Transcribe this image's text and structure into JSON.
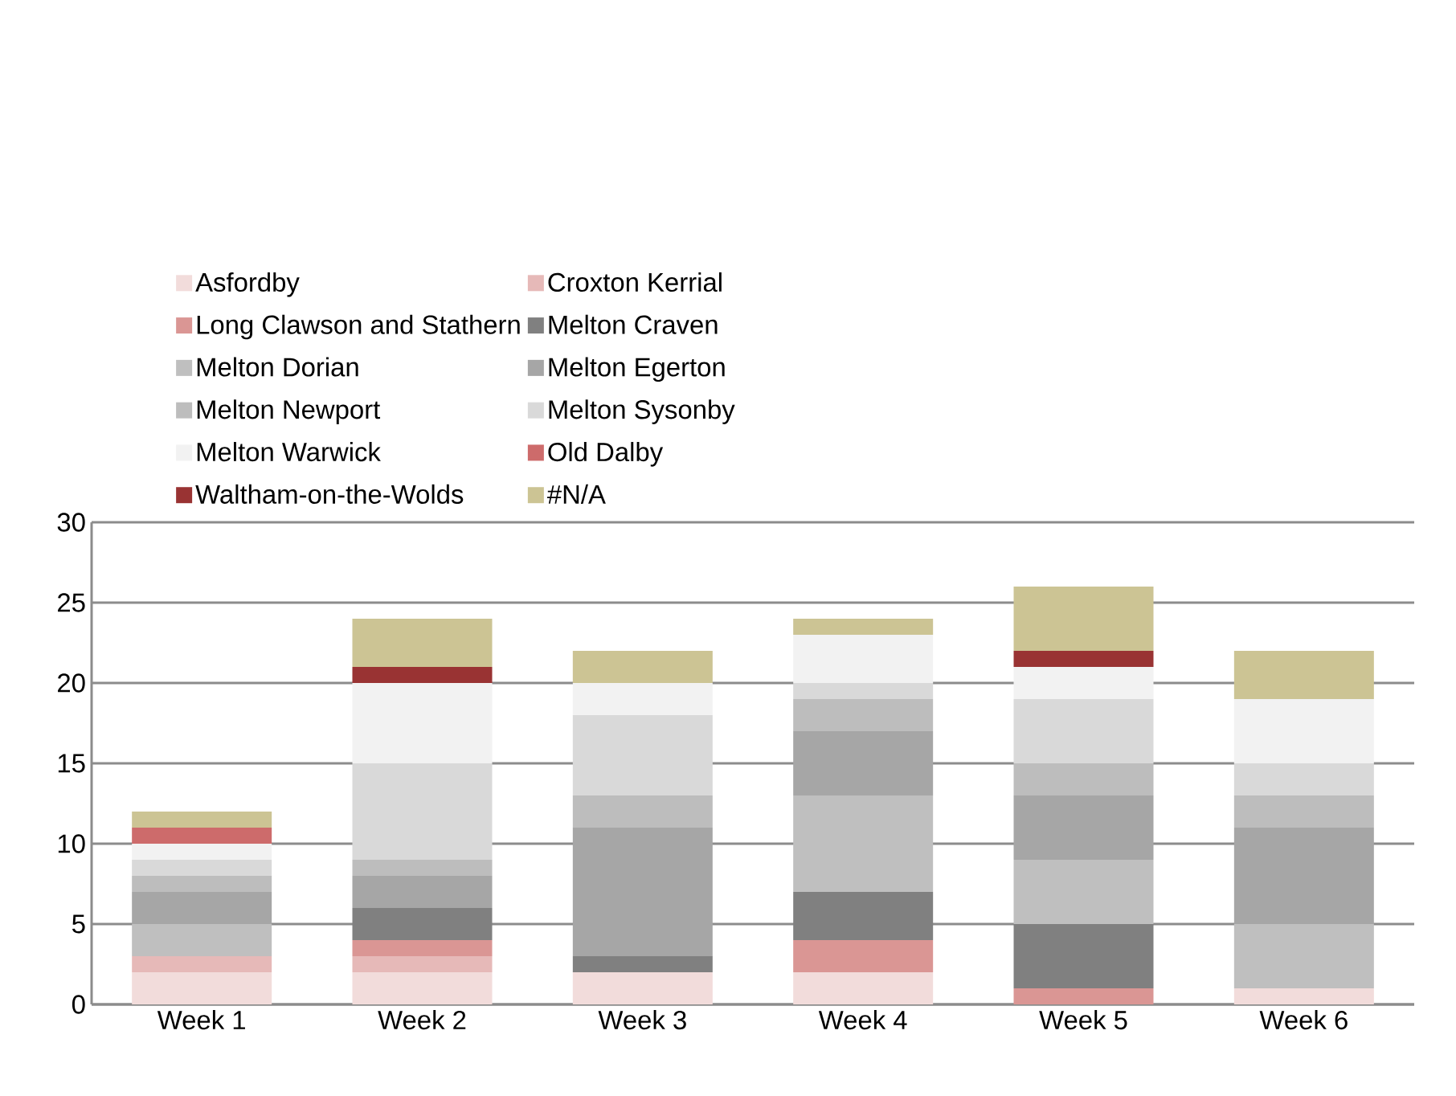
{
  "chart_data": {
    "type": "bar",
    "stacked": true,
    "categories": [
      "Week 1",
      "Week 2",
      "Week 3",
      "Week 4",
      "Week 5",
      "Week 6"
    ],
    "series": [
      {
        "name": "Asfordby",
        "color": "#f2dcdb",
        "values": [
          2,
          2,
          2,
          2,
          0,
          1
        ]
      },
      {
        "name": "Croxton Kerrial",
        "color": "#e6b9b8",
        "values": [
          1,
          1,
          0,
          0,
          0,
          0
        ]
      },
      {
        "name": "Long Clawson and Stathern",
        "color": "#da9694",
        "values": [
          0,
          1,
          0,
          2,
          1,
          0
        ]
      },
      {
        "name": "Melton Craven",
        "color": "#808080",
        "values": [
          0,
          2,
          1,
          3,
          4,
          0
        ]
      },
      {
        "name": "Melton Dorian",
        "color": "#bfbfbf",
        "values": [
          2,
          0,
          0,
          6,
          4,
          4
        ]
      },
      {
        "name": "Melton Egerton",
        "color": "#a6a6a6",
        "values": [
          2,
          2,
          8,
          4,
          4,
          6
        ]
      },
      {
        "name": "Melton Newport",
        "color": "#bdbdbd",
        "values": [
          1,
          1,
          2,
          2,
          2,
          2
        ]
      },
      {
        "name": "Melton Sysonby",
        "color": "#d9d9d9",
        "values": [
          1,
          6,
          5,
          1,
          4,
          2
        ]
      },
      {
        "name": "Melton Warwick",
        "color": "#f2f2f2",
        "values": [
          1,
          5,
          2,
          3,
          2,
          4
        ]
      },
      {
        "name": "Old Dalby",
        "color": "#cd6b6b",
        "values": [
          1,
          0,
          0,
          0,
          0,
          0
        ]
      },
      {
        "name": "Waltham-on-the-Wolds",
        "color": "#993333",
        "values": [
          0,
          1,
          0,
          0,
          1,
          0
        ]
      },
      {
        "name": "#N/A",
        "color": "#ccc494",
        "values": [
          1,
          3,
          2,
          1,
          4,
          3
        ]
      }
    ],
    "ylim": [
      0,
      30
    ],
    "yticks": [
      0,
      5,
      10,
      15,
      20,
      25,
      30
    ],
    "grid": "y",
    "legend": "top"
  }
}
